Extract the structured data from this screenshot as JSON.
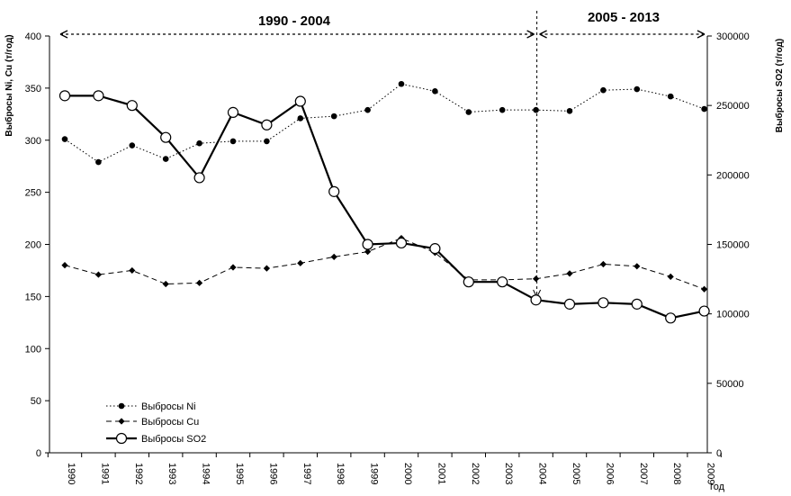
{
  "chart_data": {
    "type": "line",
    "categories": [
      "1990",
      "1991",
      "1992",
      "1993",
      "1994",
      "1995",
      "1996",
      "1997",
      "1998",
      "1999",
      "2000",
      "2001",
      "2002",
      "2003",
      "2004",
      "2005",
      "2006",
      "2007",
      "2008",
      "2009"
    ],
    "xlabel": "год",
    "ylabel_left": "Выбросы Ni, Cu (т/год)",
    "ylabel_right": "Выбросы SO2 (т/год)",
    "ylim_left": [
      0,
      400
    ],
    "ylim_right": [
      0,
      300000
    ],
    "yticks_left": [
      "0",
      "50",
      "100",
      "150",
      "200",
      "250",
      "300",
      "350",
      "400"
    ],
    "yticks_right": [
      "0",
      "50000",
      "100000",
      "150000",
      "200000",
      "250000",
      "300000"
    ],
    "grid": false,
    "legend_position": "bottom-left",
    "series": [
      {
        "name": "Выбросы Ni",
        "axis": "left",
        "style": "dotted",
        "marker": "filled-circle",
        "values": [
          301,
          279,
          295,
          282,
          297,
          299,
          299,
          321,
          323,
          329,
          354,
          347,
          327,
          329,
          329,
          328,
          348,
          349,
          342,
          330
        ]
      },
      {
        "name": "Выбросы Cu",
        "axis": "left",
        "style": "dashed",
        "marker": "filled-diamond",
        "values": [
          180,
          171,
          175,
          162,
          163,
          178,
          177,
          182,
          188,
          193,
          206,
          192,
          166,
          166,
          167,
          172,
          181,
          179,
          169,
          157
        ]
      },
      {
        "name": "Выбросы SO2",
        "axis": "right",
        "style": "solid-thick",
        "marker": "open-circle",
        "values": [
          257000,
          257000,
          250000,
          227000,
          198000,
          245000,
          236000,
          253000,
          188000,
          150000,
          151000,
          147000,
          123000,
          123000,
          110000,
          107000,
          108000,
          107000,
          97000,
          102000
        ]
      }
    ],
    "annotations": {
      "period_1": "1990 - 2004",
      "period_2": "2005 - 2013",
      "divider_at": "2004"
    }
  }
}
